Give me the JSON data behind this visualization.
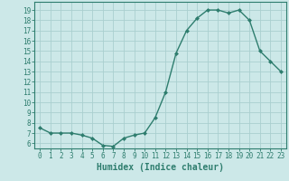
{
  "x": [
    0,
    1,
    2,
    3,
    4,
    5,
    6,
    7,
    8,
    9,
    10,
    11,
    12,
    13,
    14,
    15,
    16,
    17,
    18,
    19,
    20,
    21,
    22,
    23
  ],
  "y": [
    7.5,
    7.0,
    7.0,
    7.0,
    6.8,
    6.5,
    5.8,
    5.7,
    6.5,
    6.8,
    7.0,
    8.5,
    11.0,
    14.8,
    17.0,
    18.2,
    19.0,
    19.0,
    18.7,
    19.0,
    18.0,
    15.0,
    14.0,
    13.0
  ],
  "line_color": "#2e7d6e",
  "marker": "D",
  "marker_size": 2.0,
  "bg_color": "#cce8e8",
  "grid_color": "#aacfcf",
  "xlabel": "Humidex (Indice chaleur)",
  "xlabel_color": "#2e7d6e",
  "xlabel_fontsize": 7,
  "ytick_min": 6,
  "ytick_max": 19,
  "ylim_min": 5.5,
  "ylim_max": 19.8,
  "xlim_min": -0.5,
  "xlim_max": 23.5,
  "tick_fontsize": 5.5,
  "linewidth": 1.0
}
